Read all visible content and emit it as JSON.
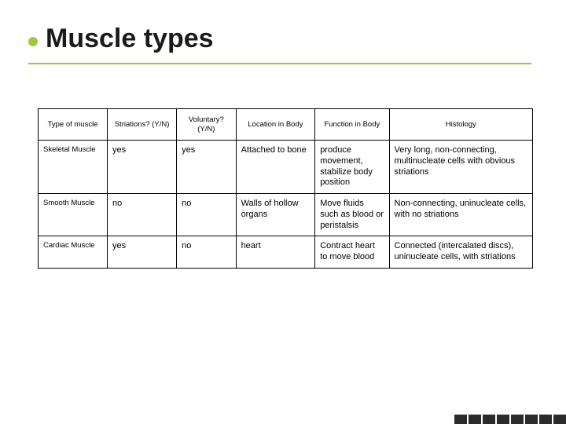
{
  "title": "Muscle types",
  "bullet_color": "#9ccb3b",
  "underline_color": "#9ccb3b",
  "table": {
    "columns": [
      "Type of muscle",
      "Striations? (Y/N)",
      "Voluntary? (Y/N)",
      "Location in Body",
      "Function in Body",
      "Histology"
    ],
    "rows": [
      {
        "type": "Skeletal Muscle",
        "striations": "yes",
        "voluntary": "yes",
        "location": "Attached to bone",
        "function": "produce movement, stabilize body position",
        "histology": "Very long, non-connecting, multinucleate cells with obvious striations"
      },
      {
        "type": "Smooth Muscle",
        "striations": "no",
        "voluntary": "no",
        "location": "Walls of hollow organs",
        "function": "Move fluids such as blood or peristalsis",
        "histology": "Non-connecting, uninucleate cells, with no striations"
      },
      {
        "type": "Cardiac Muscle",
        "striations": "yes",
        "voluntary": "no",
        "location": "heart",
        "function": "Contract heart to move blood",
        "histology": "Connected (intercalated discs), uninucleate cells, with striations"
      }
    ]
  }
}
